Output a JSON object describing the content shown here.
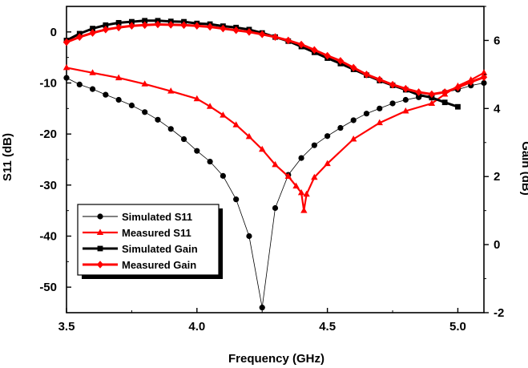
{
  "chart_data": {
    "type": "line",
    "xlabel": "Frequency (GHz)",
    "ylabel": "S11 (dB)",
    "y2label": "Gain (dB)",
    "xlim": [
      3.5,
      5.1
    ],
    "ylim": [
      -55,
      5
    ],
    "y2lim": [
      -2,
      7
    ],
    "xticks": [
      {
        "v": 3.5,
        "label": "3.5"
      },
      {
        "v": 4.0,
        "label": "4.0"
      },
      {
        "v": 4.5,
        "label": "4.5"
      },
      {
        "v": 5.0,
        "label": "5.0"
      }
    ],
    "yticks": [
      {
        "v": 0,
        "label": "0"
      },
      {
        "v": -10,
        "label": "-10"
      },
      {
        "v": -20,
        "label": "-20"
      },
      {
        "v": -30,
        "label": "-30"
      },
      {
        "v": -40,
        "label": "-40"
      },
      {
        "v": -50,
        "label": "-50"
      }
    ],
    "y2ticks": [
      {
        "v": 6,
        "label": "6"
      },
      {
        "v": 4,
        "label": "4"
      },
      {
        "v": 2,
        "label": "2"
      },
      {
        "v": 0,
        "label": "0"
      },
      {
        "v": -2,
        "label": "-2"
      }
    ],
    "legend_position": "bottom-left",
    "series": [
      {
        "name": "Simulated S11",
        "axis": "left",
        "color": "#000000",
        "marker": "circle",
        "line_width": 0.8,
        "x": [
          3.5,
          3.55,
          3.6,
          3.65,
          3.7,
          3.75,
          3.8,
          3.85,
          3.9,
          3.95,
          4.0,
          4.05,
          4.1,
          4.15,
          4.2,
          4.25,
          4.3,
          4.35,
          4.4,
          4.45,
          4.5,
          4.55,
          4.6,
          4.65,
          4.7,
          4.75,
          4.8,
          4.85,
          4.9,
          4.95,
          5.0,
          5.05,
          5.1
        ],
        "y": [
          -9.0,
          -10.3,
          -11.2,
          -12.3,
          -13.3,
          -14.4,
          -15.7,
          -17.2,
          -19.0,
          -21.0,
          -23.3,
          -25.4,
          -28.2,
          -32.8,
          -40.0,
          -54.0,
          -34.5,
          -28.0,
          -24.7,
          -22.2,
          -20.4,
          -18.8,
          -17.3,
          -16.0,
          -15.0,
          -14.0,
          -13.3,
          -12.8,
          -12.4,
          -11.8,
          -11.3,
          -10.5,
          -10.0
        ]
      },
      {
        "name": "Measured S11",
        "axis": "left",
        "color": "#ff0000",
        "marker": "triangle",
        "line_width": 2.2,
        "x": [
          3.5,
          3.6,
          3.7,
          3.8,
          3.9,
          4.0,
          4.05,
          4.1,
          4.15,
          4.2,
          4.25,
          4.3,
          4.35,
          4.38,
          4.4,
          4.41,
          4.42,
          4.45,
          4.5,
          4.6,
          4.7,
          4.8,
          4.9,
          4.95,
          5.0,
          5.05,
          5.1
        ],
        "y": [
          -7.0,
          -8.0,
          -9.0,
          -10.2,
          -11.6,
          -13.1,
          -14.6,
          -16.3,
          -18.2,
          -20.5,
          -23.0,
          -26.0,
          -28.3,
          -30.2,
          -31.5,
          -35.0,
          -31.8,
          -28.5,
          -25.8,
          -21.0,
          -17.8,
          -15.5,
          -14.0,
          -12.2,
          -10.6,
          -9.4,
          -8.0
        ]
      },
      {
        "name": "Simulated Gain",
        "axis": "right",
        "color": "#000000",
        "marker": "square",
        "line_width": 3.0,
        "x": [
          3.5,
          3.55,
          3.6,
          3.65,
          3.7,
          3.75,
          3.8,
          3.85,
          3.9,
          3.95,
          4.0,
          4.05,
          4.1,
          4.15,
          4.2,
          4.25,
          4.3,
          4.35,
          4.4,
          4.45,
          4.5,
          4.55,
          4.6,
          4.65,
          4.7,
          4.75,
          4.8,
          4.85,
          4.9,
          4.95,
          5.0
        ],
        "y": [
          6.0,
          6.2,
          6.35,
          6.45,
          6.52,
          6.55,
          6.58,
          6.58,
          6.56,
          6.55,
          6.5,
          6.48,
          6.42,
          6.38,
          6.32,
          6.22,
          6.1,
          5.98,
          5.82,
          5.65,
          5.48,
          5.32,
          5.15,
          4.98,
          4.82,
          4.68,
          4.55,
          4.4,
          4.32,
          4.18,
          4.05
        ]
      },
      {
        "name": "Measured  Gain",
        "axis": "right",
        "color": "#ff0000",
        "marker": "diamond",
        "line_width": 3.0,
        "x": [
          3.5,
          3.55,
          3.6,
          3.65,
          3.7,
          3.75,
          3.8,
          3.85,
          3.9,
          3.95,
          4.0,
          4.05,
          4.1,
          4.15,
          4.2,
          4.25,
          4.3,
          4.35,
          4.4,
          4.45,
          4.5,
          4.55,
          4.6,
          4.65,
          4.7,
          4.75,
          4.8,
          4.85,
          4.9,
          4.95,
          5.0,
          5.05,
          5.1
        ],
        "y": [
          5.95,
          6.1,
          6.22,
          6.32,
          6.38,
          6.43,
          6.45,
          6.47,
          6.46,
          6.45,
          6.43,
          6.4,
          6.35,
          6.3,
          6.25,
          6.18,
          6.1,
          6.0,
          5.88,
          5.72,
          5.55,
          5.4,
          5.2,
          5.0,
          4.85,
          4.7,
          4.58,
          4.48,
          4.42,
          4.48,
          4.62,
          4.78,
          4.92
        ]
      }
    ]
  }
}
